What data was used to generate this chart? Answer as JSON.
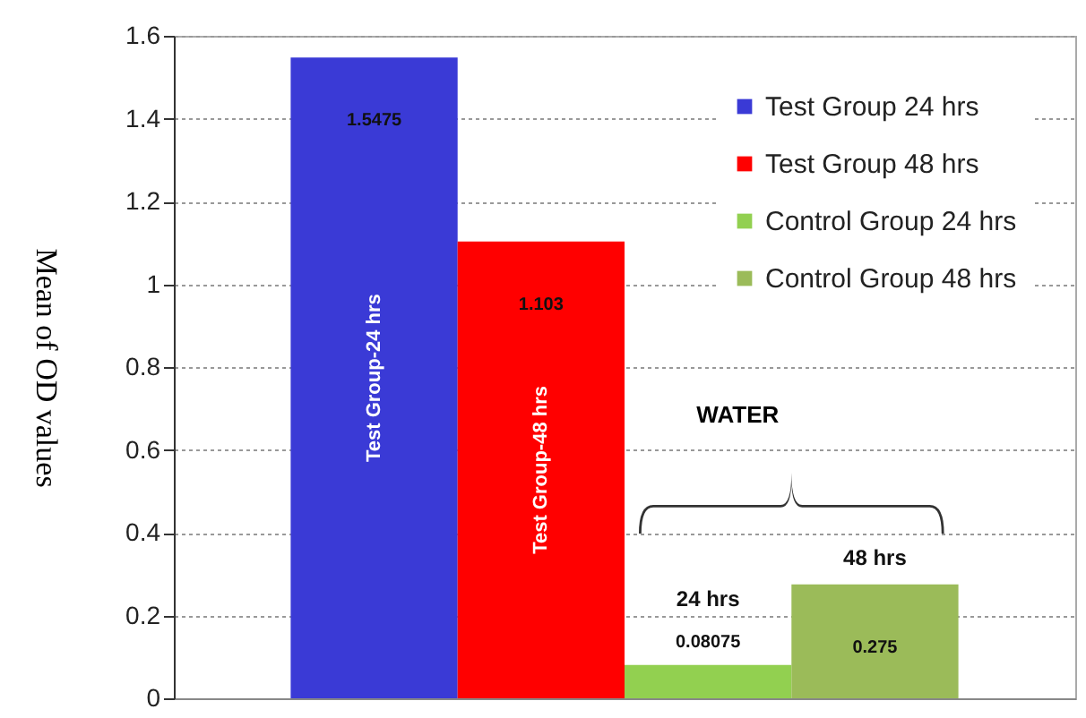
{
  "chart_data": {
    "type": "bar",
    "ylabel": "Mean of OD values",
    "categories": [
      "Test Group-24 hrs",
      "Test  Group-48 hrs",
      "24 hrs",
      "48 hrs"
    ],
    "series": [
      {
        "name": "Test Group 24 hrs",
        "color": "#3a3ad6",
        "values": [
          1.5475,
          null,
          null,
          null
        ]
      },
      {
        "name": "Test Group 48 hrs",
        "color": "#ff0000",
        "values": [
          null,
          1.103,
          null,
          null
        ]
      },
      {
        "name": "Control Group 24 hrs",
        "color": "#92d050",
        "values": [
          null,
          null,
          0.08075,
          null
        ]
      },
      {
        "name": "Control Group 48 hrs",
        "color": "#9bbb59",
        "values": [
          null,
          null,
          null,
          0.275
        ]
      }
    ],
    "ylim": [
      0,
      1.6
    ],
    "yticks": [
      0,
      0.2,
      0.4,
      0.6,
      0.8,
      1,
      1.2,
      1.4,
      1.6
    ],
    "annotations": [
      "WATER"
    ],
    "data_labels": true,
    "grid": "y",
    "legend": "top right",
    "tick_labels": "y"
  }
}
